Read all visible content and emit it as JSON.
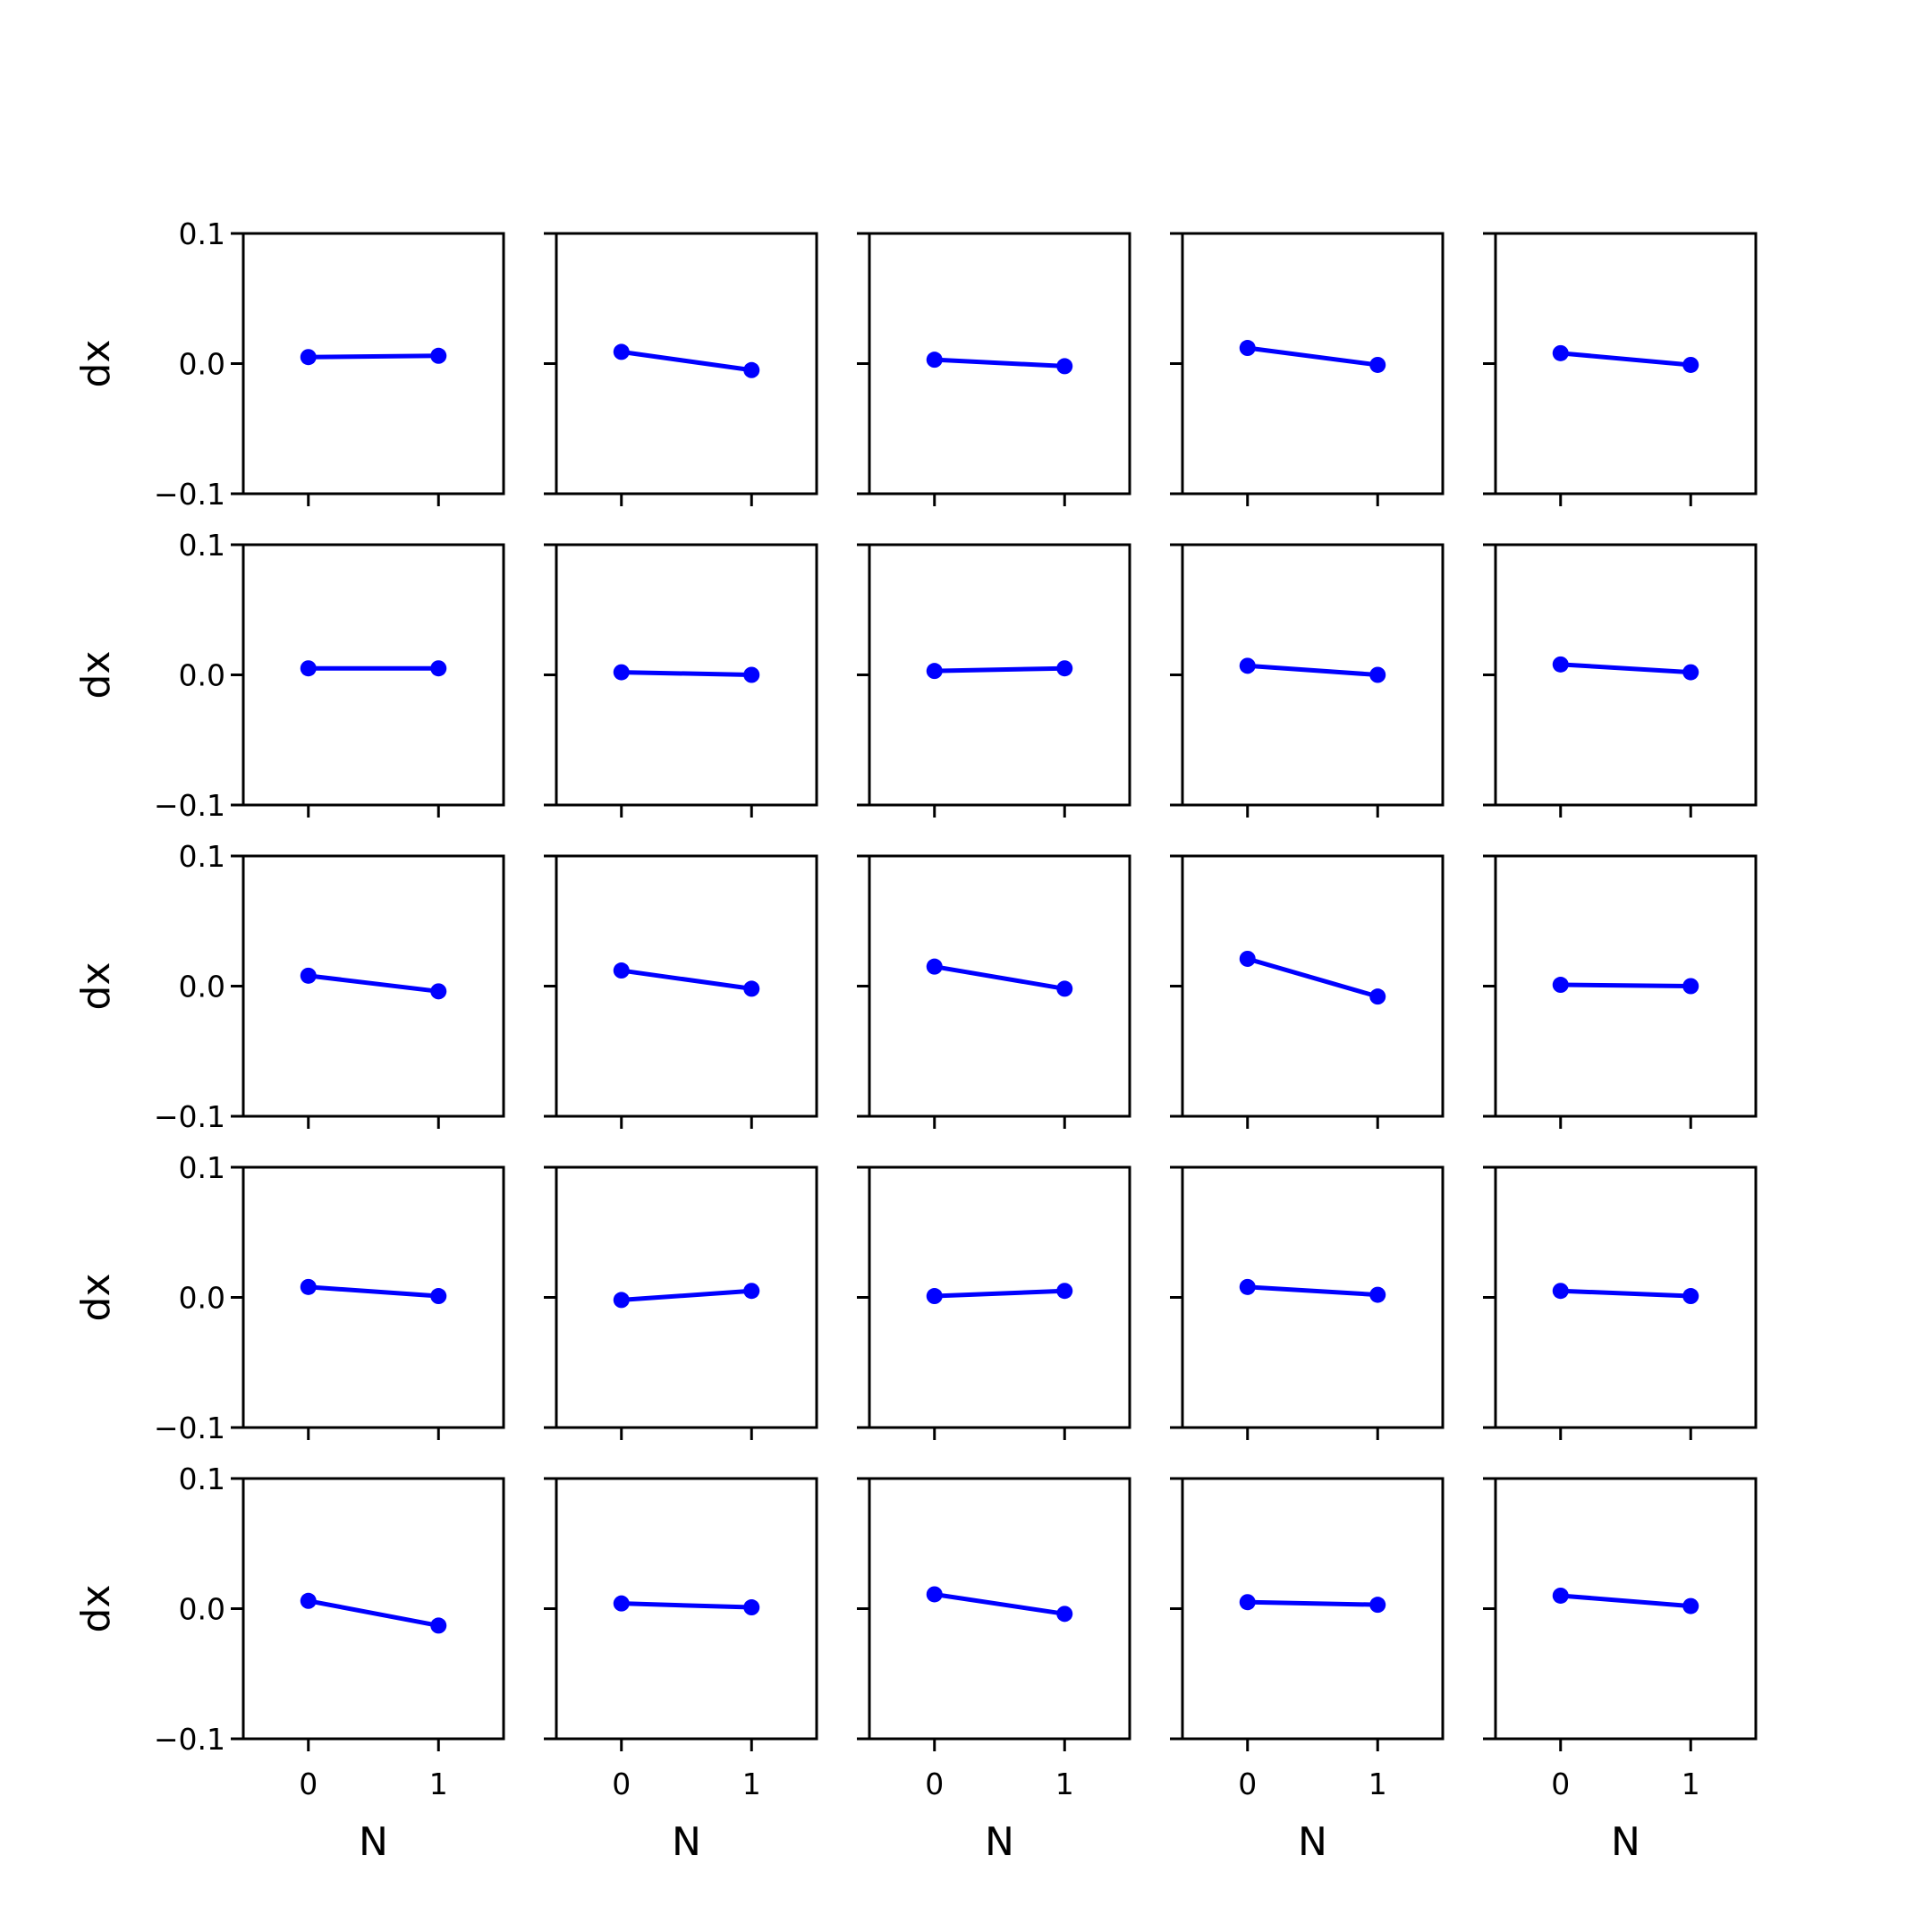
{
  "chart_data": {
    "type": "line",
    "layout": "grid of small multiples, 5 rows x 5 columns, shared axes",
    "rows": 5,
    "cols": 5,
    "xlabel": "N",
    "ylabel": "dx",
    "x_ticks": [
      0,
      1
    ],
    "x_tick_labels": [
      "0",
      "1"
    ],
    "xlim": [
      -0.5,
      1.5
    ],
    "y_ticks": [
      0.1,
      0.0,
      -0.1
    ],
    "y_tick_labels": [
      "0.1",
      "0.0",
      "−0.1"
    ],
    "ylim": [
      -0.1,
      0.1
    ],
    "series_color": "#0000ff",
    "marker": "circle",
    "grid": false,
    "x": [
      0,
      1
    ],
    "panels": [
      [
        0.005,
        0.006
      ],
      [
        0.009,
        -0.005
      ],
      [
        0.003,
        -0.002
      ],
      [
        0.012,
        -0.001
      ],
      [
        0.008,
        -0.001
      ],
      [
        0.005,
        0.005
      ],
      [
        0.002,
        0.0
      ],
      [
        0.003,
        0.005
      ],
      [
        0.007,
        0.0
      ],
      [
        0.008,
        0.002
      ],
      [
        0.008,
        -0.004
      ],
      [
        0.012,
        -0.002
      ],
      [
        0.015,
        -0.002
      ],
      [
        0.021,
        -0.008
      ],
      [
        0.001,
        0.0
      ],
      [
        0.008,
        0.001
      ],
      [
        -0.002,
        0.005
      ],
      [
        0.001,
        0.005
      ],
      [
        0.008,
        0.002
      ],
      [
        0.005,
        0.001
      ],
      [
        0.006,
        -0.013
      ],
      [
        0.004,
        0.001
      ],
      [
        0.011,
        -0.004
      ],
      [
        0.005,
        0.003
      ],
      [
        0.01,
        0.002
      ]
    ]
  }
}
